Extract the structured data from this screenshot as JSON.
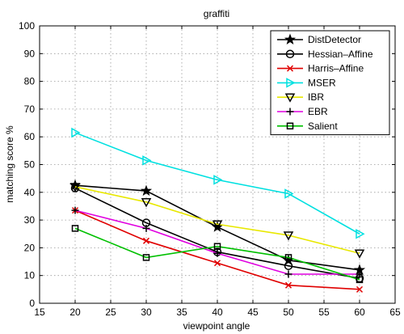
{
  "chart_data": {
    "type": "line",
    "title": "graffiti",
    "xlabel": "viewpoint angle",
    "ylabel": "matching score %",
    "xlim": [
      15,
      65
    ],
    "ylim": [
      0,
      100
    ],
    "xticks": [
      15,
      20,
      25,
      30,
      35,
      40,
      45,
      50,
      55,
      60,
      65
    ],
    "yticks": [
      0,
      10,
      20,
      30,
      40,
      50,
      60,
      70,
      80,
      90,
      100
    ],
    "grid": true,
    "legend_position": "top-right",
    "x": [
      20,
      30,
      40,
      50,
      60
    ],
    "series": [
      {
        "name": "DistDetector",
        "color": "#000000",
        "marker": "star",
        "values": [
          42.5,
          40.5,
          27.5,
          15.5,
          12.0
        ]
      },
      {
        "name": "Hessian–Affine",
        "color": "#000000",
        "marker": "circle",
        "values": [
          41.5,
          29.0,
          18.5,
          13.5,
          9.0
        ]
      },
      {
        "name": "Harris–Affine",
        "color": "#e00000",
        "marker": "x",
        "values": [
          33.5,
          22.5,
          14.5,
          6.5,
          5.0
        ]
      },
      {
        "name": "MSER",
        "color": "#00e0e0",
        "marker": "triangle-right",
        "values": [
          61.5,
          51.5,
          44.5,
          39.5,
          25.0
        ]
      },
      {
        "name": "IBR",
        "color": "#e8e800",
        "marker": "triangle-down",
        "values": [
          42.0,
          36.5,
          28.5,
          24.5,
          18.0
        ]
      },
      {
        "name": "EBR",
        "color": "#e000e0",
        "marker": "plus",
        "values": [
          33.5,
          27.0,
          18.0,
          10.5,
          10.5
        ]
      },
      {
        "name": "Salient",
        "color": "#00c000",
        "marker": "square",
        "values": [
          27.0,
          16.5,
          20.5,
          16.5,
          8.5
        ]
      }
    ]
  }
}
